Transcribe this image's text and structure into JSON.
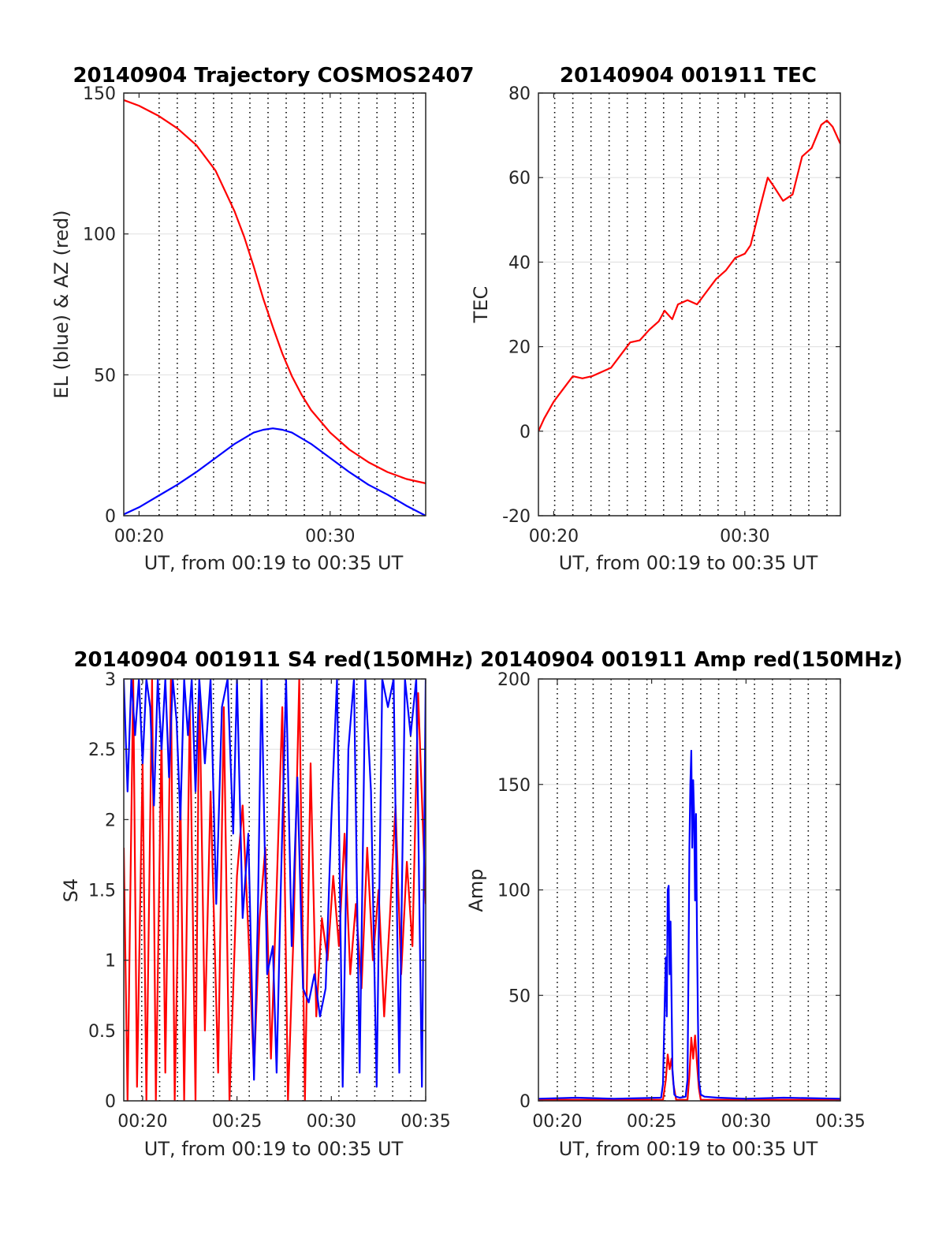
{
  "chart_data": [
    {
      "id": "trajectory",
      "type": "line",
      "title": "20140904 Trajectory COSMOS2407",
      "xlabel": "UT, from 00:19 to 00:35 UT",
      "ylabel": "EL (blue) & AZ (red)",
      "xlim": [
        19.2,
        35.0
      ],
      "ylim": [
        0,
        150
      ],
      "xticks": [
        {
          "v": 20,
          "label": "00:20"
        },
        {
          "v": 30,
          "label": "00:30"
        }
      ],
      "yticks": [
        {
          "v": 0,
          "label": "0"
        },
        {
          "v": 50,
          "label": "50"
        },
        {
          "v": 100,
          "label": "100"
        },
        {
          "v": 150,
          "label": "150"
        }
      ],
      "grid_y": true,
      "series": [
        {
          "color": "#ff0000",
          "x": [
            19.2,
            20,
            21,
            22,
            23,
            24,
            25,
            25.5,
            26,
            26.5,
            27,
            27.5,
            28,
            28.5,
            29,
            30,
            31,
            32,
            33,
            34,
            35
          ],
          "y": [
            147.5,
            145.5,
            142,
            137.5,
            131.5,
            122.5,
            108,
            99,
            88.5,
            77,
            67,
            57.5,
            49.5,
            43,
            37.5,
            29.5,
            23.5,
            19,
            15.5,
            13,
            11.5
          ]
        },
        {
          "color": "#0000ff",
          "x": [
            19.2,
            20,
            21,
            22,
            23,
            24,
            25,
            26,
            26.5,
            27,
            27.5,
            28,
            29,
            30,
            31,
            32,
            33,
            34,
            35
          ],
          "y": [
            0.5,
            3,
            7,
            11,
            15.5,
            20.5,
            25.5,
            29.5,
            30.5,
            31,
            30.5,
            29.5,
            25.5,
            20.5,
            15.5,
            11,
            7.5,
            3.5,
            0
          ]
        }
      ]
    },
    {
      "id": "tec",
      "type": "line",
      "title": "20140904 001911 TEC",
      "xlabel": "UT, from 00:19 to 00:35 UT",
      "ylabel": "TEC",
      "xlim": [
        19.2,
        35.0
      ],
      "ylim": [
        -20,
        80
      ],
      "xticks": [
        {
          "v": 20,
          "label": "00:20"
        },
        {
          "v": 30,
          "label": "00:30"
        }
      ],
      "yticks": [
        {
          "v": -20,
          "label": "-20"
        },
        {
          "v": 0,
          "label": "0"
        },
        {
          "v": 20,
          "label": "20"
        },
        {
          "v": 40,
          "label": "40"
        },
        {
          "v": 60,
          "label": "60"
        },
        {
          "v": 80,
          "label": "80"
        }
      ],
      "grid_y": true,
      "series": [
        {
          "color": "#ff0000",
          "x": [
            19.2,
            19.5,
            20,
            20.5,
            21,
            21.5,
            22,
            22.5,
            23,
            23.5,
            24,
            24.5,
            25,
            25.5,
            25.8,
            26.2,
            26.5,
            27,
            27.5,
            28,
            28.5,
            29,
            29.5,
            30,
            30.3,
            30.8,
            31.2,
            31.5,
            32,
            32.5,
            33,
            33.5,
            34,
            34.3,
            34.6,
            35
          ],
          "y": [
            0,
            3,
            7,
            10,
            13,
            12.5,
            13,
            14,
            15,
            18,
            21,
            21.5,
            24,
            26,
            28.5,
            26.5,
            30,
            31,
            30,
            33,
            36,
            38,
            41,
            42,
            44,
            53,
            60,
            58,
            54.5,
            56,
            65,
            67,
            72.5,
            73.5,
            72,
            68
          ]
        }
      ]
    },
    {
      "id": "s4",
      "type": "line",
      "title": "20140904 001911 S4 red(150MHz)",
      "xlabel": "UT, from 00:19 to 00:35 UT",
      "ylabel": "S4",
      "xlim": [
        19.0,
        35.0
      ],
      "ylim": [
        0,
        3
      ],
      "xticks": [
        {
          "v": 20,
          "label": "00:20"
        },
        {
          "v": 25,
          "label": "00:25"
        },
        {
          "v": 30,
          "label": "00:30"
        },
        {
          "v": 35,
          "label": "00:35"
        }
      ],
      "yticks": [
        {
          "v": 0,
          "label": "0"
        },
        {
          "v": 0.5,
          "label": "0.5"
        },
        {
          "v": 1,
          "label": "1"
        },
        {
          "v": 1.5,
          "label": "1.5"
        },
        {
          "v": 2,
          "label": "2"
        },
        {
          "v": 2.5,
          "label": "2.5"
        },
        {
          "v": 3,
          "label": "3"
        }
      ],
      "grid_y": true,
      "series": [
        {
          "color": "#ff0000",
          "x": [
            19.0,
            19.2,
            19.5,
            19.7,
            20.0,
            20.2,
            20.5,
            20.7,
            21.0,
            21.2,
            21.5,
            21.7,
            22.0,
            22.2,
            22.5,
            22.8,
            23.0,
            23.3,
            23.6,
            24.0,
            24.3,
            24.6,
            25.0,
            25.3,
            25.6,
            25.9,
            26.2,
            26.5,
            26.8,
            27.1,
            27.4,
            27.7,
            28.0,
            28.3,
            28.6,
            28.9,
            29.2,
            29.5,
            29.8,
            30.1,
            30.4,
            30.7,
            31.0,
            31.3,
            31.6,
            31.9,
            32.2,
            32.5,
            32.8,
            33.1,
            33.4,
            33.7,
            34.0,
            34.3,
            34.6,
            35.0
          ],
          "y": [
            1.8,
            0,
            3,
            0.1,
            2.4,
            0,
            3,
            0,
            2.6,
            0.2,
            3,
            0,
            2.2,
            0,
            2.8,
            0,
            3,
            0.5,
            2.2,
            0.2,
            2.8,
            0,
            1.6,
            2.1,
            1.2,
            0.2,
            1.3,
            1.8,
            0.3,
            1.5,
            2.8,
            0,
            1.2,
            3,
            0,
            2.4,
            0.6,
            1.3,
            1.0,
            1.6,
            1.1,
            1.9,
            0.9,
            1.4,
            0.8,
            1.8,
            1.0,
            1.5,
            0.6,
            1.3,
            2.1,
            0.9,
            1.7,
            1.1,
            2.9,
            1.4
          ]
        },
        {
          "color": "#0000ff",
          "x": [
            19.0,
            19.2,
            19.4,
            19.6,
            19.8,
            20.0,
            20.2,
            20.4,
            20.6,
            20.8,
            21.0,
            21.2,
            21.4,
            21.6,
            21.8,
            22.0,
            22.2,
            22.4,
            22.6,
            22.8,
            23.0,
            23.3,
            23.6,
            23.9,
            24.2,
            24.5,
            24.8,
            25.0,
            25.3,
            25.6,
            25.9,
            26.1,
            26.3,
            26.6,
            26.9,
            27.1,
            27.3,
            27.6,
            27.9,
            28.2,
            28.5,
            28.8,
            29.1,
            29.4,
            29.7,
            30.0,
            30.3,
            30.6,
            30.9,
            31.2,
            31.5,
            31.8,
            32.1,
            32.4,
            32.7,
            33.0,
            33.3,
            33.6,
            33.9,
            34.2,
            34.5,
            34.8,
            35.0
          ],
          "y": [
            3,
            2.2,
            3,
            2.6,
            3,
            2.4,
            3,
            2.8,
            2.1,
            3,
            2.5,
            3,
            2.3,
            3,
            2.7,
            2.0,
            3,
            2.6,
            3,
            2.2,
            3,
            2.4,
            3,
            1.4,
            2.8,
            3,
            1.9,
            3,
            1.3,
            1.9,
            0.15,
            1.3,
            3,
            0.9,
            1.1,
            0.2,
            1.4,
            3,
            1.1,
            2.3,
            0.8,
            0.7,
            0.9,
            0.6,
            0.8,
            2.0,
            3,
            0.1,
            2.5,
            3,
            0.2,
            3,
            2.2,
            0.1,
            3,
            2.8,
            3,
            0.2,
            3,
            2.6,
            3,
            0.1,
            3
          ]
        }
      ]
    },
    {
      "id": "amp",
      "type": "line",
      "title": "20140904 001911 Amp red(150MHz)",
      "xlabel": "UT, from 00:19 to 00:35 UT",
      "ylabel": "Amp",
      "xlim": [
        19.0,
        35.0
      ],
      "ylim": [
        0,
        200
      ],
      "xticks": [
        {
          "v": 20,
          "label": "00:20"
        },
        {
          "v": 25,
          "label": "00:25"
        },
        {
          "v": 30,
          "label": "00:30"
        },
        {
          "v": 35,
          "label": "00:35"
        }
      ],
      "yticks": [
        {
          "v": 0,
          "label": "0"
        },
        {
          "v": 50,
          "label": "50"
        },
        {
          "v": 100,
          "label": "100"
        },
        {
          "v": 150,
          "label": "150"
        },
        {
          "v": 200,
          "label": "200"
        }
      ],
      "grid_y": true,
      "series": [
        {
          "color": "#ff0000",
          "x": [
            19.0,
            25.6,
            25.75,
            25.85,
            25.95,
            26.05,
            26.15,
            26.3,
            26.9,
            27.0,
            27.1,
            27.2,
            27.3,
            27.4,
            27.5,
            27.6,
            35.0
          ],
          "y": [
            0.5,
            0.5,
            10,
            22,
            15,
            20,
            8,
            0.5,
            0.5,
            12,
            30,
            20,
            31,
            18,
            6,
            0.5,
            0.5
          ]
        },
        {
          "color": "#0000ff",
          "x": [
            19.0,
            21.0,
            23.0,
            25.5,
            25.6,
            25.7,
            25.75,
            25.8,
            25.85,
            25.9,
            25.95,
            26.0,
            26.1,
            26.2,
            26.3,
            26.5,
            26.8,
            26.9,
            26.95,
            27.0,
            27.05,
            27.1,
            27.15,
            27.2,
            27.25,
            27.3,
            27.35,
            27.4,
            27.45,
            27.5,
            27.6,
            27.8,
            28.5,
            30.0,
            32.0,
            35.0
          ],
          "y": [
            1,
            1.5,
            1,
            1.5,
            8,
            50,
            68,
            40,
            100,
            102,
            60,
            85,
            15,
            3,
            2,
            1.5,
            2,
            10,
            60,
            120,
            150,
            166,
            120,
            152,
            135,
            95,
            136,
            80,
            40,
            10,
            3,
            2,
            1.5,
            1,
            1.5,
            1
          ]
        }
      ]
    }
  ]
}
